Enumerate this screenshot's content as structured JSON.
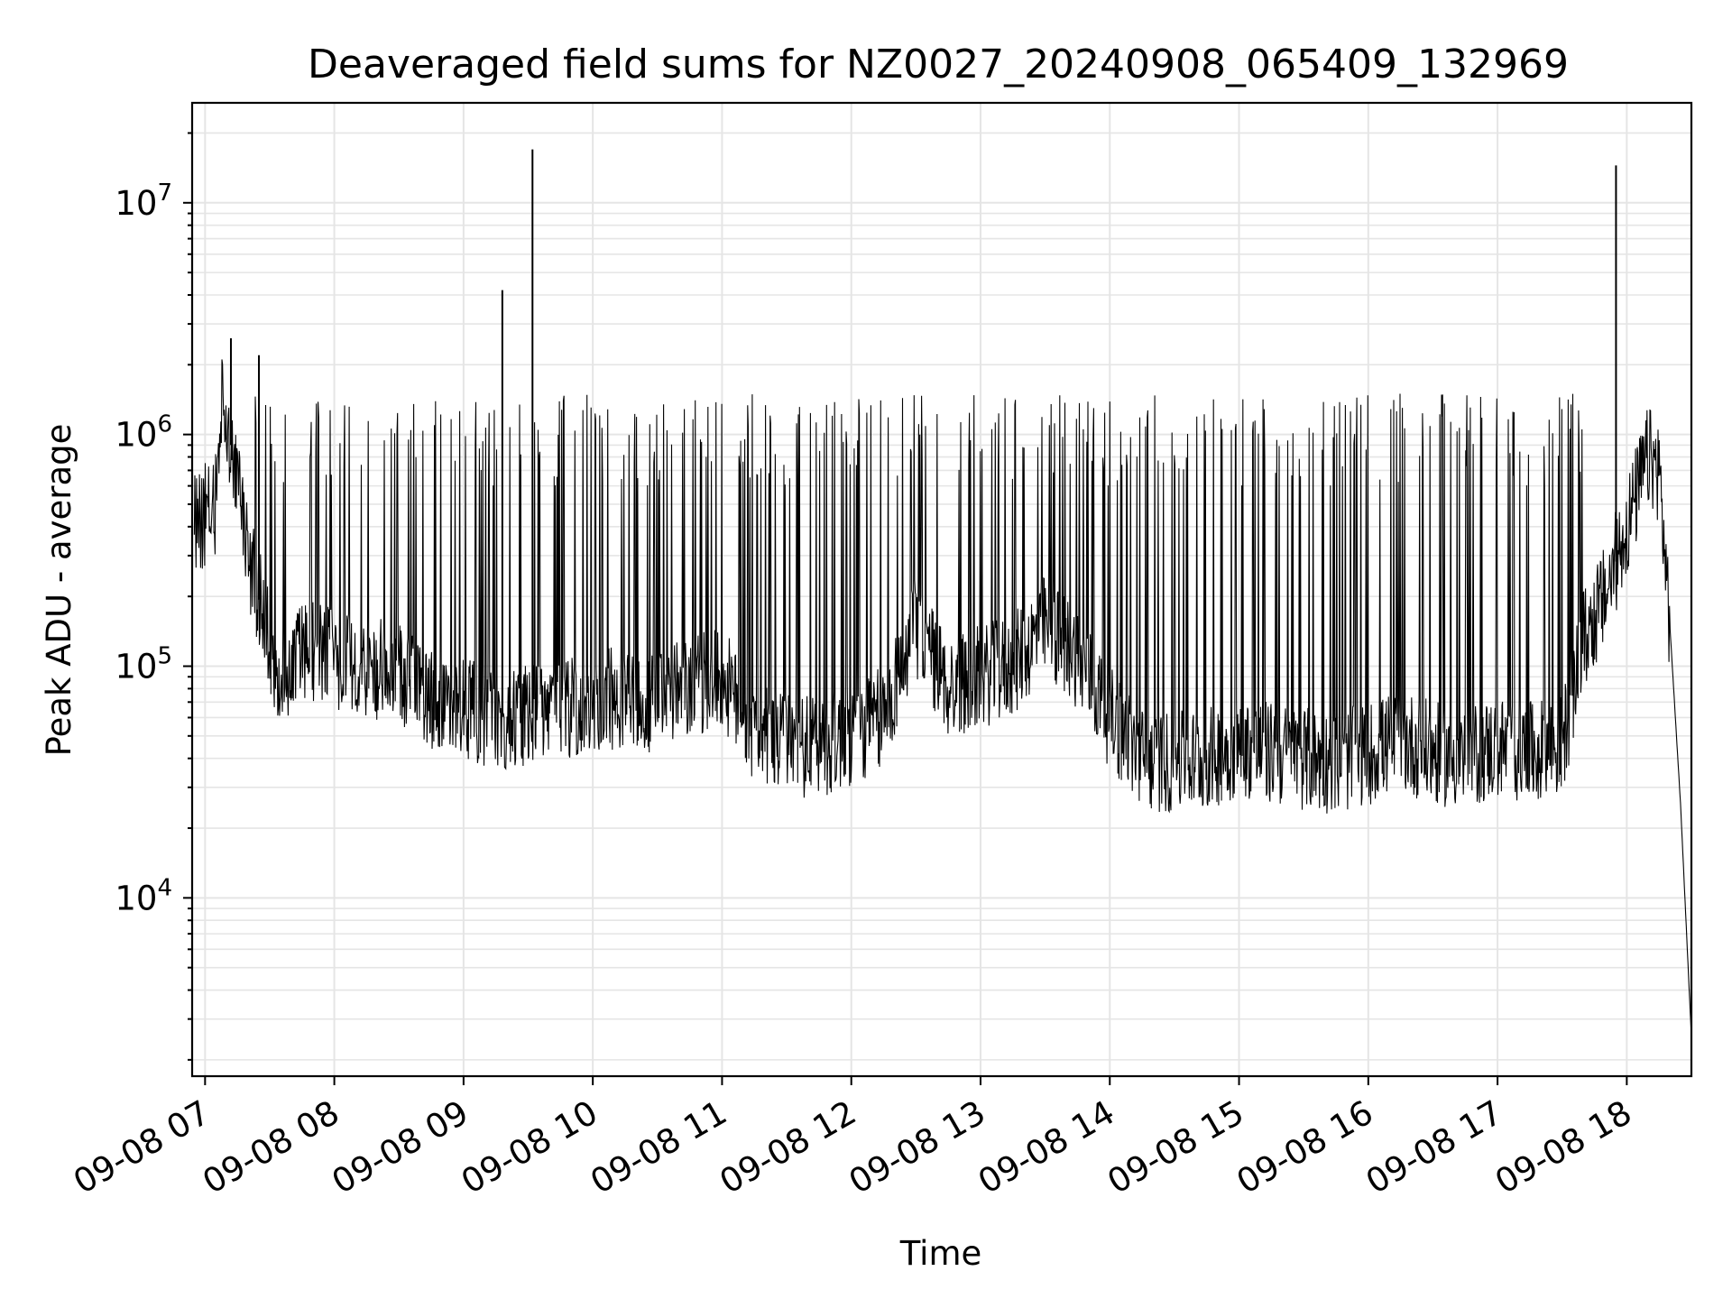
{
  "chart_data": {
    "type": "line",
    "title": "Deaveraged field sums for NZ0027_20240908_065409_132969",
    "xlabel": "Time",
    "ylabel": "Peak ADU - average",
    "y_scale": "log",
    "ylim": [
      1700,
      27000000
    ],
    "xlim": [
      "2024-09-08 06:54",
      "2024-09-08 18:30"
    ],
    "x_ticks": [
      "09-08 07",
      "09-08 08",
      "09-08 09",
      "09-08 10",
      "09-08 11",
      "09-08 12",
      "09-08 13",
      "09-08 14",
      "09-08 15",
      "09-08 16",
      "09-08 17",
      "09-08 18"
    ],
    "y_ticks": [
      {
        "base": "10",
        "exp": "4"
      },
      {
        "base": "10",
        "exp": "5"
      },
      {
        "base": "10",
        "exp": "6"
      },
      {
        "base": "10",
        "exp": "7"
      }
    ],
    "grid": true,
    "line_color": "#000000",
    "grid_color": "#e5e5e5",
    "series": [
      {
        "x": [
          "2024-09-08 06:55",
          "2024-09-08 07:00",
          "2024-09-08 07:05",
          "2024-09-08 07:08",
          "2024-09-08 07:12",
          "2024-09-08 07:15",
          "2024-09-08 07:18",
          "2024-09-08 07:22",
          "2024-09-08 07:28",
          "2024-09-08 07:35",
          "2024-09-08 07:45",
          "2024-09-08 08:00",
          "2024-09-08 08:15",
          "2024-09-08 08:30",
          "2024-09-08 08:45",
          "2024-09-08 09:00",
          "2024-09-08 09:15",
          "2024-09-08 09:30",
          "2024-09-08 09:45",
          "2024-09-08 10:00",
          "2024-09-08 10:15",
          "2024-09-08 10:30",
          "2024-09-08 10:45",
          "2024-09-08 11:00",
          "2024-09-08 11:15",
          "2024-09-08 11:30",
          "2024-09-08 11:45",
          "2024-09-08 12:00",
          "2024-09-08 12:15",
          "2024-09-08 12:30",
          "2024-09-08 12:45",
          "2024-09-08 13:00",
          "2024-09-08 13:15",
          "2024-09-08 13:30",
          "2024-09-08 13:45",
          "2024-09-08 14:00",
          "2024-09-08 14:15",
          "2024-09-08 14:30",
          "2024-09-08 14:45",
          "2024-09-08 15:00",
          "2024-09-08 15:15",
          "2024-09-08 15:30",
          "2024-09-08 15:45",
          "2024-09-08 16:00",
          "2024-09-08 16:15",
          "2024-09-08 16:30",
          "2024-09-08 16:45",
          "2024-09-08 17:00",
          "2024-09-08 17:15",
          "2024-09-08 17:30",
          "2024-09-08 17:40",
          "2024-09-08 17:50",
          "2024-09-08 18:00",
          "2024-09-08 18:10",
          "2024-09-08 18:15",
          "2024-09-08 18:20",
          "2024-09-08 18:25",
          "2024-09-08 18:30"
        ],
        "y": [
          400000,
          450000,
          500000,
          1600000,
          900000,
          600000,
          400000,
          250000,
          150000,
          90000,
          120000,
          110000,
          100000,
          90000,
          70000,
          65000,
          60000,
          62000,
          65000,
          70000,
          75000,
          70000,
          80000,
          90000,
          50000,
          45000,
          45000,
          50000,
          60000,
          150000,
          80000,
          90000,
          100000,
          150000,
          110000,
          60000,
          40000,
          38000,
          40000,
          45000,
          42000,
          40000,
          38000,
          42000,
          48000,
          42000,
          40000,
          45000,
          42000,
          45000,
          130000,
          200000,
          400000,
          800000,
          700000,
          150000,
          25000,
          2500
        ]
      }
    ],
    "spikes": [
      {
        "x": "2024-09-08 07:12",
        "y": 2600000
      },
      {
        "x": "2024-09-08 07:25",
        "y": 2200000
      },
      {
        "x": "2024-09-08 09:18",
        "y": 4200000
      },
      {
        "x": "2024-09-08 09:32",
        "y": 17000000
      },
      {
        "x": "2024-09-08 17:55",
        "y": 14500000
      }
    ]
  }
}
